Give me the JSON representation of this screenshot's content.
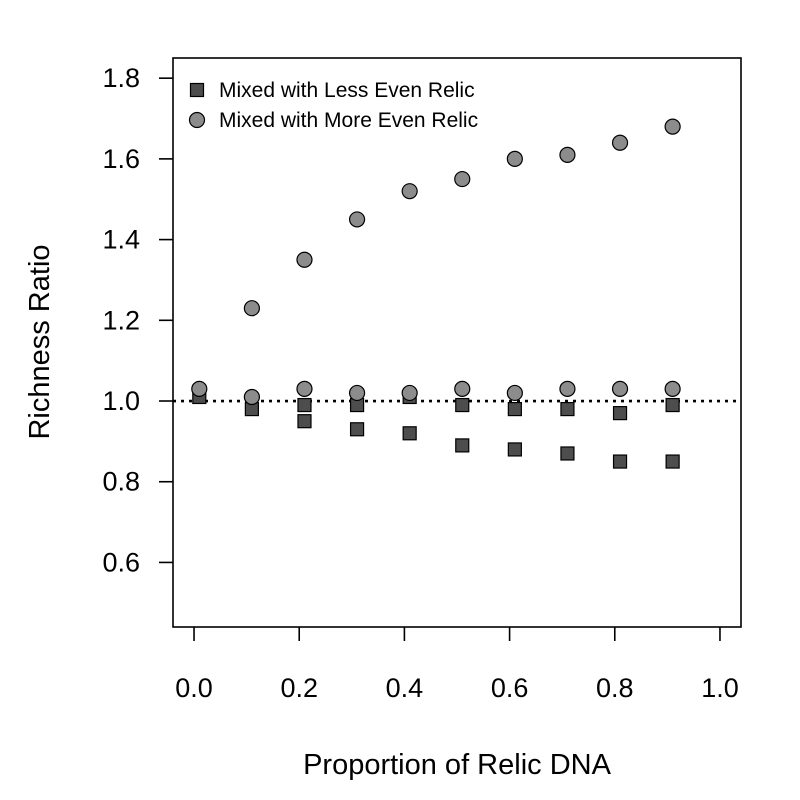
{
  "chart_data": {
    "type": "scatter",
    "title": "",
    "xlabel": "Proportion of Relic DNA",
    "ylabel": "Richness Ratio",
    "xlim": [
      -0.04,
      1.04
    ],
    "ylim": [
      0.44,
      1.85
    ],
    "xticks": [
      "0.0",
      "0.2",
      "0.4",
      "0.6",
      "0.8",
      "1.0"
    ],
    "yticks": [
      "0.6",
      "0.8",
      "1.0",
      "1.2",
      "1.4",
      "1.6",
      "1.8"
    ],
    "reference_line": {
      "y": 1.0,
      "style": "dotted"
    },
    "legend": {
      "position": "top-left"
    },
    "grid": false,
    "series": [
      {
        "name": "Mixed with Less Even Relic",
        "marker": "square",
        "color": "#4d4d4d",
        "x": [
          0.01,
          0.11,
          0.21,
          0.31,
          0.41,
          0.51,
          0.61,
          0.71,
          0.81,
          0.91
        ],
        "y": [
          1.01,
          0.98,
          0.95,
          0.93,
          0.92,
          0.89,
          0.88,
          0.87,
          0.85,
          0.85
        ]
      },
      {
        "name": "Mixed with Less Even Relic",
        "marker": "square",
        "color": "#4d4d4d",
        "x": [
          0.21,
          0.31,
          0.41,
          0.51,
          0.61,
          0.71,
          0.81,
          0.91
        ],
        "y": [
          0.99,
          0.99,
          1.01,
          0.99,
          0.98,
          0.98,
          0.97,
          0.99
        ]
      },
      {
        "name": "Mixed with More Even Relic",
        "marker": "circle",
        "color": "#8c8c8c",
        "x": [
          0.01,
          0.11,
          0.21,
          0.31,
          0.41,
          0.51,
          0.61,
          0.71,
          0.81,
          0.91
        ],
        "y": [
          1.03,
          1.01,
          1.03,
          1.02,
          1.02,
          1.03,
          1.02,
          1.03,
          1.03,
          1.03
        ]
      },
      {
        "name": "Mixed with More Even Relic",
        "marker": "circle",
        "color": "#8c8c8c",
        "x": [
          0.11,
          0.21,
          0.31,
          0.41,
          0.51,
          0.61,
          0.71,
          0.81,
          0.91
        ],
        "y": [
          1.23,
          1.35,
          1.45,
          1.52,
          1.55,
          1.6,
          1.61,
          1.64,
          1.68
        ]
      }
    ],
    "legend_entries": [
      {
        "label": "Mixed with Less Even Relic",
        "marker": "square",
        "color": "#4d4d4d"
      },
      {
        "label": "Mixed with More Even Relic",
        "marker": "circle",
        "color": "#8c8c8c"
      }
    ]
  }
}
